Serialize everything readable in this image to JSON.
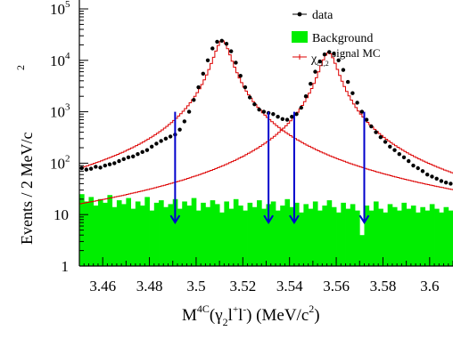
{
  "chart_data": {
    "type": "line",
    "y_scale": "log",
    "xlim": [
      3.45,
      3.61
    ],
    "ylim": [
      1,
      100000
    ],
    "x_ticks": [
      3.46,
      3.48,
      3.5,
      3.52,
      3.54,
      3.56,
      3.58,
      3.6
    ],
    "x_tick_labels": [
      "3.46",
      "3.48",
      "3.5",
      "3.52",
      "3.54",
      "3.56",
      "3.58",
      "3.6"
    ],
    "y_ticks": [
      1,
      10,
      100,
      1000,
      10000,
      100000
    ],
    "xlabel": {
      "base": "M",
      "sup": "4C",
      "open": "(γ",
      "sub": "2",
      "leptons": "l",
      "lep_sup": "+",
      "lepton2": "l",
      "lep2_sup": "-",
      "close": ")  (MeV/c",
      "unit_sup": "2",
      "end": ")"
    },
    "ylabel": "Events / 2 MeV/c",
    "ylabel_sup": "2",
    "legend": {
      "position": "top-right",
      "entries": [
        {
          "label": "data",
          "style": "points",
          "color": "#000000"
        },
        {
          "label": "Background",
          "style": "fill",
          "color": "#00ee00"
        },
        {
          "label_main": "χ",
          "label_sub": "c1,2",
          "label_rest": " signal MC",
          "style": "line",
          "color": "#dd0000"
        }
      ]
    },
    "arrows": {
      "color": "#0000cc",
      "x_positions": [
        3.491,
        3.531,
        3.542,
        3.572
      ],
      "y_top": 1000,
      "y_bottom": 7
    },
    "series": [
      {
        "name": "data",
        "kind": "points",
        "color": "#000000",
        "x": [
          3.451,
          3.453,
          3.455,
          3.457,
          3.459,
          3.461,
          3.463,
          3.465,
          3.467,
          3.469,
          3.471,
          3.473,
          3.475,
          3.477,
          3.479,
          3.481,
          3.483,
          3.485,
          3.487,
          3.489,
          3.491,
          3.493,
          3.495,
          3.497,
          3.499,
          3.501,
          3.503,
          3.505,
          3.507,
          3.509,
          3.511,
          3.513,
          3.515,
          3.517,
          3.519,
          3.521,
          3.523,
          3.525,
          3.527,
          3.529,
          3.531,
          3.533,
          3.535,
          3.537,
          3.539,
          3.541,
          3.543,
          3.545,
          3.547,
          3.549,
          3.551,
          3.553,
          3.555,
          3.557,
          3.559,
          3.561,
          3.563,
          3.565,
          3.567,
          3.569,
          3.571,
          3.573,
          3.575,
          3.577,
          3.579,
          3.581,
          3.583,
          3.585,
          3.587,
          3.589,
          3.591,
          3.593,
          3.595,
          3.597,
          3.599,
          3.601,
          3.603,
          3.605,
          3.607,
          3.609
        ],
        "y": [
          80,
          75,
          78,
          85,
          82,
          90,
          95,
          100,
          110,
          120,
          130,
          135,
          150,
          165,
          180,
          210,
          240,
          270,
          300,
          330,
          360,
          450,
          650,
          1000,
          1700,
          3000,
          5500,
          10000,
          17000,
          23000,
          24000,
          21000,
          15000,
          9000,
          5000,
          3000,
          1900,
          1400,
          1100,
          1000,
          950,
          900,
          800,
          720,
          700,
          800,
          900,
          1200,
          2000,
          3500,
          6000,
          9500,
          13000,
          14500,
          13500,
          10000,
          6500,
          3800,
          2300,
          1500,
          1000,
          700,
          520,
          400,
          320,
          260,
          210,
          180,
          150,
          130,
          110,
          90,
          80,
          70,
          60,
          55,
          50,
          45,
          42,
          40
        ]
      },
      {
        "name": "chi_c1 signal MC",
        "kind": "line",
        "color": "#dd0000",
        "peak_x": 3.5107,
        "peak_y": 24000,
        "half_width": 0.0037
      },
      {
        "name": "chi_c2 signal MC",
        "kind": "line",
        "color": "#dd0000",
        "peak_x": 3.5562,
        "peak_y": 14000,
        "half_width": 0.0038
      },
      {
        "name": "Background",
        "kind": "histogram",
        "color": "#00ee00",
        "x": [
          3.451,
          3.453,
          3.455,
          3.457,
          3.459,
          3.461,
          3.463,
          3.465,
          3.467,
          3.469,
          3.471,
          3.473,
          3.475,
          3.477,
          3.479,
          3.481,
          3.483,
          3.485,
          3.487,
          3.489,
          3.491,
          3.493,
          3.495,
          3.497,
          3.499,
          3.501,
          3.503,
          3.505,
          3.507,
          3.509,
          3.511,
          3.513,
          3.515,
          3.517,
          3.519,
          3.521,
          3.523,
          3.525,
          3.527,
          3.529,
          3.531,
          3.533,
          3.535,
          3.537,
          3.539,
          3.541,
          3.543,
          3.545,
          3.547,
          3.549,
          3.551,
          3.553,
          3.555,
          3.557,
          3.559,
          3.561,
          3.563,
          3.565,
          3.567,
          3.569,
          3.571,
          3.573,
          3.575,
          3.577,
          3.579,
          3.581,
          3.583,
          3.585,
          3.587,
          3.589,
          3.591,
          3.593,
          3.595,
          3.597,
          3.599,
          3.601,
          3.603,
          3.605,
          3.607,
          3.609
        ],
        "y": [
          25,
          18,
          22,
          15,
          20,
          17,
          24,
          14,
          19,
          16,
          21,
          13,
          18,
          15,
          22,
          12,
          17,
          19,
          14,
          16,
          20,
          13,
          18,
          15,
          21,
          12,
          17,
          14,
          19,
          16,
          11,
          18,
          13,
          20,
          15,
          12,
          17,
          14,
          19,
          13,
          16,
          18,
          12,
          15,
          20,
          14,
          17,
          11,
          16,
          13,
          18,
          12,
          15,
          19,
          14,
          11,
          17,
          13,
          16,
          12,
          4,
          15,
          12,
          18,
          13,
          11,
          16,
          14,
          12,
          17,
          13,
          15,
          11,
          14,
          12,
          16,
          13,
          11,
          14,
          12
        ]
      }
    ]
  }
}
